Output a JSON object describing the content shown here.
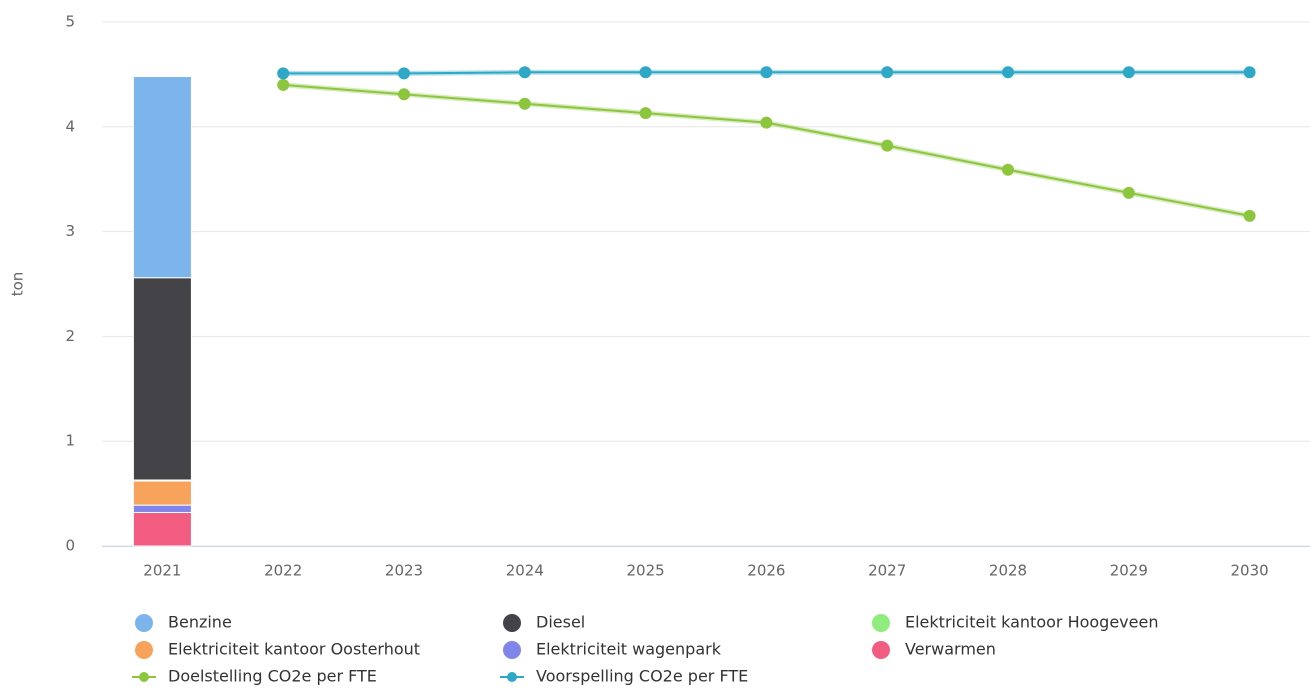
{
  "chart_data": {
    "type": "bar",
    "stacked": true,
    "y_label": "ton",
    "categories": [
      "2021",
      "2022",
      "2023",
      "2024",
      "2025",
      "2026",
      "2027",
      "2028",
      "2029",
      "2030"
    ],
    "ylim": [
      0,
      5
    ],
    "yticks": [
      0,
      1,
      2,
      3,
      4,
      5
    ],
    "grid": true,
    "series": [
      {
        "name": "Benzine",
        "type": "bar",
        "color": "#7cb5ec",
        "values": [
          1.92,
          null,
          null,
          null,
          null,
          null,
          null,
          null,
          null,
          null
        ]
      },
      {
        "name": "Diesel",
        "type": "bar",
        "color": "#434348",
        "values": [
          1.93,
          null,
          null,
          null,
          null,
          null,
          null,
          null,
          null,
          null
        ]
      },
      {
        "name": "Elektriciteit kantoor Hoogeveen",
        "type": "bar",
        "color": "#90ed7d",
        "values": [
          0.01,
          null,
          null,
          null,
          null,
          null,
          null,
          null,
          null,
          null
        ]
      },
      {
        "name": "Elektriciteit kantoor Oosterhout",
        "type": "bar",
        "color": "#f7a35c",
        "values": [
          0.23,
          null,
          null,
          null,
          null,
          null,
          null,
          null,
          null,
          null
        ]
      },
      {
        "name": "Elektriciteit wagenpark",
        "type": "bar",
        "color": "#8085e9",
        "values": [
          0.07,
          null,
          null,
          null,
          null,
          null,
          null,
          null,
          null,
          null
        ]
      },
      {
        "name": "Verwarmen",
        "type": "bar",
        "color": "#f15c80",
        "values": [
          0.32,
          null,
          null,
          null,
          null,
          null,
          null,
          null,
          null,
          null
        ]
      },
      {
        "name": "Doelstelling CO2e per FTE",
        "type": "line",
        "color": "#8cc63f",
        "values": [
          null,
          4.4,
          4.31,
          4.22,
          4.13,
          4.04,
          3.82,
          3.59,
          3.37,
          3.15
        ]
      },
      {
        "name": "Voorspelling CO2e per FTE",
        "type": "line",
        "color": "#2ea8c6",
        "values": [
          null,
          4.51,
          4.51,
          4.52,
          4.52,
          4.52,
          4.52,
          4.52,
          4.52,
          4.52
        ]
      }
    ]
  }
}
